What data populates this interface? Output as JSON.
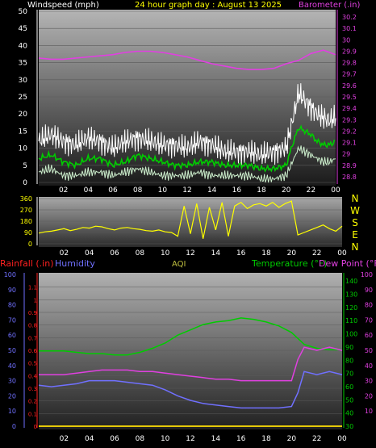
{
  "chart_data": [
    {
      "type": "line",
      "title": "24 hour graph day : August 13 2025",
      "ylabel": "Windspeed (mph)",
      "y2label": "Barometer (.in)",
      "x_ticks": [
        "02",
        "04",
        "06",
        "08",
        "10",
        "12",
        "14",
        "16",
        "18",
        "20",
        "22",
        "00"
      ],
      "ylim": [
        0,
        50
      ],
      "y_ticks": [
        0,
        5,
        10,
        15,
        20,
        25,
        30,
        35,
        40,
        45,
        50
      ],
      "y2lim": [
        28.75,
        30.25
      ],
      "y2_ticks": [
        "28.8",
        "28.9",
        "29",
        "29.1",
        "29.2",
        "29.3",
        "29.4",
        "29.5",
        "29.6",
        "29.7",
        "29.8",
        "29.9",
        "30",
        "30.1",
        "30.2"
      ],
      "grid": true,
      "series": [
        {
          "name": "Windspeed (mph)",
          "role": "gust",
          "color": "#ffffff",
          "x": [
            0,
            1,
            2,
            3,
            4,
            5,
            6,
            7,
            8,
            9,
            10,
            11,
            12,
            13,
            14,
            15,
            16,
            17,
            18,
            19,
            20,
            20.5,
            21,
            21.5,
            22,
            22.5,
            23,
            23.5,
            24
          ],
          "y": [
            12,
            14,
            12,
            11,
            13,
            12,
            10,
            12,
            13,
            12,
            11,
            11,
            10,
            12,
            11,
            9,
            9,
            9,
            8,
            9,
            10,
            18,
            26,
            24,
            22,
            20,
            19,
            18,
            19
          ]
        },
        {
          "name": "Windspeed avg",
          "role": "average",
          "color": "#00cc00",
          "x": [
            0,
            1,
            2,
            3,
            4,
            5,
            6,
            7,
            8,
            9,
            10,
            11,
            12,
            13,
            14,
            15,
            16,
            17,
            18,
            19,
            20,
            20.5,
            21,
            21.5,
            22,
            22.5,
            23,
            23.5,
            24
          ],
          "y": [
            7,
            8,
            6,
            5,
            7,
            7,
            5,
            6,
            8,
            7,
            6,
            5,
            5,
            6,
            6,
            5,
            5,
            5,
            4,
            4,
            5,
            11,
            16,
            15,
            14,
            12,
            11,
            11,
            12
          ]
        },
        {
          "name": "Windspeed min",
          "role": "lull",
          "color": "#cceecc",
          "x": [
            0,
            1,
            2,
            3,
            4,
            5,
            6,
            7,
            8,
            9,
            10,
            11,
            12,
            13,
            14,
            15,
            16,
            17,
            18,
            19,
            20,
            20.5,
            21,
            21.5,
            22,
            22.5,
            23,
            23.5,
            24
          ],
          "y": [
            3,
            4,
            2,
            2,
            3,
            3,
            2,
            3,
            4,
            3,
            2,
            2,
            2,
            3,
            2,
            2,
            2,
            2,
            1,
            1,
            2,
            6,
            10,
            9,
            8,
            7,
            6,
            6,
            7
          ]
        },
        {
          "name": "Barometer (.in)",
          "axis": "right",
          "color": "#e040e0",
          "x": [
            0,
            1,
            2,
            3,
            4,
            5,
            6,
            7,
            8,
            9,
            10,
            11,
            12,
            13,
            14,
            15,
            16,
            17,
            18,
            19,
            20,
            21,
            22,
            23,
            24
          ],
          "y": [
            29.84,
            29.83,
            29.83,
            29.84,
            29.85,
            29.86,
            29.87,
            29.89,
            29.9,
            29.9,
            29.89,
            29.87,
            29.85,
            29.82,
            29.79,
            29.77,
            29.75,
            29.74,
            29.74,
            29.75,
            29.79,
            29.82,
            29.88,
            29.91,
            29.87
          ]
        }
      ]
    },
    {
      "type": "line",
      "title": "",
      "ylabel": "",
      "x_ticks": [
        "02",
        "04",
        "06",
        "08",
        "10",
        "12",
        "14",
        "16",
        "18",
        "20",
        "22",
        "00"
      ],
      "ylim": [
        0,
        360
      ],
      "y_ticks": [
        0,
        90,
        180,
        270,
        360
      ],
      "compass_labels": [
        "N",
        "W",
        "S",
        "E",
        "N"
      ],
      "series": [
        {
          "name": "Wind direction",
          "color": "#ffff00",
          "x": [
            0,
            0.5,
            1,
            1.5,
            2,
            2.5,
            3,
            3.5,
            4,
            4.5,
            5,
            5.5,
            6,
            6.5,
            7,
            7.5,
            8,
            8.5,
            9,
            9.5,
            10,
            10.5,
            11,
            11.5,
            12,
            12.5,
            13,
            13.5,
            14,
            14.5,
            15,
            15.5,
            16,
            16.5,
            17,
            17.5,
            18,
            18.5,
            19,
            19.5,
            20,
            20.5,
            21,
            21.5,
            22,
            22.5,
            23,
            23.5,
            24
          ],
          "y": [
            85,
            95,
            100,
            110,
            120,
            105,
            115,
            130,
            125,
            140,
            135,
            120,
            110,
            125,
            130,
            120,
            115,
            105,
            100,
            110,
            95,
            90,
            60,
            300,
            80,
            320,
            40,
            290,
            110,
            330,
            60,
            300,
            330,
            280,
            310,
            320,
            300,
            330,
            290,
            320,
            340,
            70,
            90,
            110,
            130,
            150,
            120,
            100,
            140
          ]
        }
      ]
    },
    {
      "type": "line",
      "title": "",
      "legend": [
        "Rainfall (.in)",
        "Humidity",
        "AQI",
        "Temperature (°F)",
        "Dew Point (°F)"
      ],
      "x_ticks": [
        "02",
        "04",
        "06",
        "08",
        "10",
        "12",
        "14",
        "16",
        "18",
        "20",
        "22",
        "00"
      ],
      "y_left1_label": "Rainfall (.in)",
      "y_left1_ticks": [
        "0",
        "0.1",
        "0.2",
        "0.3",
        "0.4",
        "0.5",
        "0.6",
        "0.7",
        "0.8",
        "0.9",
        "1",
        "1.1"
      ],
      "y_left2_label": "Humidity",
      "y_left2_ticks": [
        0,
        10,
        20,
        30,
        40,
        50,
        60,
        70,
        80,
        90,
        100
      ],
      "y_right1_label": "Temperature (°F)",
      "y_right1_ticks": [
        30,
        40,
        50,
        60,
        70,
        80,
        90,
        100,
        110,
        120,
        130,
        140
      ],
      "y_right2_label": "Dew Point (°F)",
      "y_right2_ticks": [
        10,
        20,
        30,
        40,
        50,
        60,
        70,
        80,
        90,
        100
      ],
      "series": [
        {
          "name": "Temperature (°F)",
          "axis": "right1",
          "color": "#00cc00",
          "x": [
            0,
            1,
            2,
            3,
            4,
            5,
            6,
            7,
            8,
            9,
            10,
            11,
            12,
            13,
            14,
            15,
            16,
            17,
            18,
            19,
            20,
            21,
            22,
            23,
            24
          ],
          "y": [
            87,
            87,
            87,
            86,
            85,
            85,
            84,
            84,
            86,
            89,
            93,
            99,
            103,
            107,
            109,
            110,
            112,
            111,
            109,
            106,
            101,
            92,
            89,
            88,
            88
          ]
        },
        {
          "name": "Humidity",
          "axis": "left2",
          "color": "#7070ff",
          "x": [
            0,
            1,
            2,
            3,
            4,
            5,
            6,
            7,
            8,
            9,
            10,
            11,
            12,
            13,
            14,
            15,
            16,
            17,
            18,
            19,
            20,
            20.5,
            21,
            22,
            23,
            24
          ],
          "y": [
            27,
            26,
            27,
            28,
            30,
            30,
            30,
            29,
            28,
            27,
            24,
            20,
            17,
            15,
            14,
            13,
            12,
            12,
            12,
            12,
            13,
            22,
            36,
            34,
            36,
            34
          ]
        },
        {
          "name": "Dew Point (°F)",
          "axis": "right2",
          "color": "#e040e0",
          "x": [
            0,
            1,
            2,
            3,
            4,
            5,
            6,
            7,
            8,
            9,
            10,
            11,
            12,
            13,
            14,
            15,
            16,
            17,
            18,
            19,
            20,
            20.5,
            21,
            22,
            23,
            24
          ],
          "y": [
            34,
            34,
            34,
            35,
            36,
            37,
            37,
            37,
            36,
            36,
            35,
            34,
            33,
            32,
            31,
            31,
            30,
            30,
            30,
            30,
            30,
            44,
            52,
            50,
            52,
            50
          ]
        },
        {
          "name": "Rainfall (.in)",
          "axis": "left1",
          "color": "#ff2020",
          "x": [
            0,
            24
          ],
          "y": [
            0,
            0
          ]
        },
        {
          "name": "AQI",
          "axis": "none",
          "color": "#ffff00",
          "x": [
            0,
            24
          ],
          "y": [
            0,
            0
          ]
        }
      ]
    }
  ]
}
